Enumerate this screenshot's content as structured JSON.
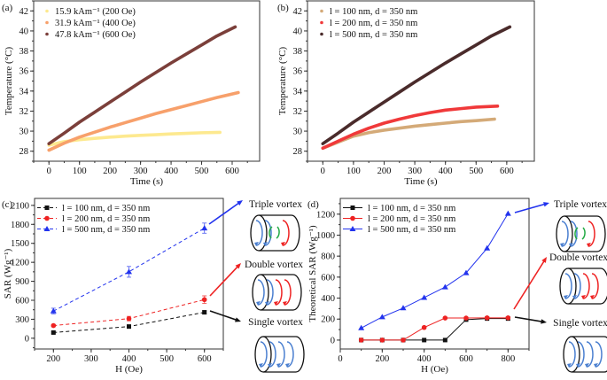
{
  "chart_data": [
    {
      "panel": "(a)",
      "type": "scatter",
      "xlabel": "Time (s)",
      "ylabel": "Temperature (°C)",
      "xlim": [
        -50,
        690
      ],
      "ylim": [
        27,
        43
      ],
      "xticks": [
        0,
        100,
        200,
        300,
        400,
        500,
        600
      ],
      "yticks": [
        28,
        30,
        32,
        34,
        36,
        38,
        40,
        42
      ],
      "legend": "top-left",
      "series": [
        {
          "name": "15.9 kAm⁻¹ (200 Oe)",
          "color": "#fde98f",
          "x": [
            0,
            50,
            100,
            150,
            200,
            250,
            300,
            350,
            400,
            450,
            500,
            560
          ],
          "y": [
            28.6,
            28.95,
            29.15,
            29.28,
            29.4,
            29.5,
            29.58,
            29.65,
            29.72,
            29.78,
            29.84,
            29.88
          ]
        },
        {
          "name": "31.9 kAm⁻¹ (400 Oe)",
          "color": "#f7a06b",
          "x": [
            0,
            50,
            100,
            150,
            200,
            250,
            300,
            350,
            400,
            450,
            500,
            550,
            620
          ],
          "y": [
            28.1,
            28.8,
            29.4,
            29.9,
            30.4,
            30.85,
            31.3,
            31.75,
            32.15,
            32.55,
            32.95,
            33.35,
            33.85
          ]
        },
        {
          "name": "47.8 kAm⁻¹ (600 Oe)",
          "color": "#7b3f3a",
          "x": [
            0,
            50,
            100,
            150,
            200,
            250,
            300,
            350,
            400,
            450,
            500,
            550,
            610
          ],
          "y": [
            28.75,
            29.8,
            30.9,
            31.9,
            32.9,
            33.9,
            34.9,
            35.85,
            36.8,
            37.7,
            38.6,
            39.5,
            40.4
          ]
        }
      ]
    },
    {
      "panel": "(b)",
      "type": "scatter",
      "xlabel": "Time (s)",
      "ylabel": "Temperature (°C)",
      "xlim": [
        -50,
        690
      ],
      "ylim": [
        27,
        43
      ],
      "xticks": [
        0,
        100,
        200,
        300,
        400,
        500,
        600
      ],
      "yticks": [
        28,
        30,
        32,
        34,
        36,
        38,
        40,
        42
      ],
      "legend": "top-left",
      "series": [
        {
          "name": "l = 100 nm, d = 350 nm",
          "color": "#d4aa78",
          "x": [
            0,
            50,
            100,
            150,
            200,
            250,
            300,
            350,
            400,
            450,
            500,
            560
          ],
          "y": [
            28.3,
            28.9,
            29.5,
            29.85,
            30.1,
            30.3,
            30.5,
            30.65,
            30.8,
            30.95,
            31.05,
            31.2
          ]
        },
        {
          "name": "l = 200 nm, d = 350 nm",
          "color": "#f0393a",
          "x": [
            0,
            50,
            100,
            150,
            200,
            250,
            300,
            350,
            400,
            450,
            500,
            570
          ],
          "y": [
            28.3,
            29.0,
            29.7,
            30.3,
            30.8,
            31.2,
            31.55,
            31.85,
            32.1,
            32.25,
            32.4,
            32.5
          ]
        },
        {
          "name": "l = 500 nm, d = 350 nm",
          "color": "#4a2b2b",
          "x": [
            0,
            50,
            100,
            150,
            200,
            250,
            300,
            350,
            400,
            450,
            500,
            550,
            610
          ],
          "y": [
            28.75,
            29.8,
            30.9,
            31.9,
            32.9,
            33.9,
            34.9,
            35.85,
            36.8,
            37.7,
            38.6,
            39.5,
            40.4
          ]
        }
      ]
    },
    {
      "panel": "(c)",
      "type": "line",
      "xlabel": "H (Oe)",
      "ylabel": "SAR (Wg⁻¹)",
      "xlim": [
        150,
        650
      ],
      "ylim": [
        -170,
        2210
      ],
      "xticks": [
        200,
        300,
        400,
        500,
        600
      ],
      "yticks": [
        0,
        300,
        600,
        900,
        1200,
        1500,
        1800,
        2100
      ],
      "legend": "top-left",
      "line_style": "dashed",
      "series": [
        {
          "name": "l = 100 nm, d = 350 nm",
          "color": "#111111",
          "marker": "square",
          "x": [
            200,
            400,
            600
          ],
          "y": [
            90,
            185,
            410
          ],
          "err": [
            10,
            15,
            25
          ]
        },
        {
          "name": "l = 200 nm, d = 350 nm",
          "color": "#ee2222",
          "marker": "circle",
          "x": [
            200,
            400,
            600
          ],
          "y": [
            200,
            310,
            610
          ],
          "err": [
            20,
            35,
            60
          ]
        },
        {
          "name": "l = 500 nm, d = 350 nm",
          "color": "#2233ee",
          "marker": "triangle",
          "x": [
            200,
            400,
            600
          ],
          "y": [
            430,
            1050,
            1740
          ],
          "err": [
            45,
            85,
            80
          ]
        }
      ],
      "annotations": [
        "Triple vortex",
        "Double vortex",
        "Single vortex"
      ]
    },
    {
      "panel": "(d)",
      "type": "line",
      "xlabel": "H (Oe)",
      "ylabel": "Theoretical SAR (Wg⁻¹)",
      "xlim": [
        0,
        900
      ],
      "ylim": [
        -85,
        1350
      ],
      "xticks": [
        0,
        200,
        400,
        600,
        800
      ],
      "yticks": [
        0,
        200,
        400,
        600,
        800,
        1000,
        1200
      ],
      "legend": "top-left",
      "line_style": "solid",
      "series": [
        {
          "name": "l = 100 nm, d = 350 nm",
          "color": "#111111",
          "marker": "square",
          "x": [
            100,
            200,
            300,
            400,
            500,
            600,
            700,
            800
          ],
          "y": [
            0,
            0,
            0,
            0,
            0,
            195,
            205,
            205
          ]
        },
        {
          "name": "l = 200 nm, d = 350 nm",
          "color": "#ee2222",
          "marker": "circle",
          "x": [
            100,
            200,
            300,
            400,
            500,
            600,
            700,
            800
          ],
          "y": [
            0,
            0,
            0,
            120,
            210,
            210,
            212,
            212
          ]
        },
        {
          "name": "l = 500 nm, d = 350 nm",
          "color": "#2233ee",
          "marker": "triangle",
          "x": [
            100,
            200,
            300,
            400,
            500,
            600,
            700,
            800
          ],
          "y": [
            115,
            220,
            305,
            405,
            505,
            640,
            875,
            1205
          ]
        }
      ],
      "annotations": [
        "Triple vortex",
        "Double vortex",
        "Single vortex"
      ]
    }
  ]
}
